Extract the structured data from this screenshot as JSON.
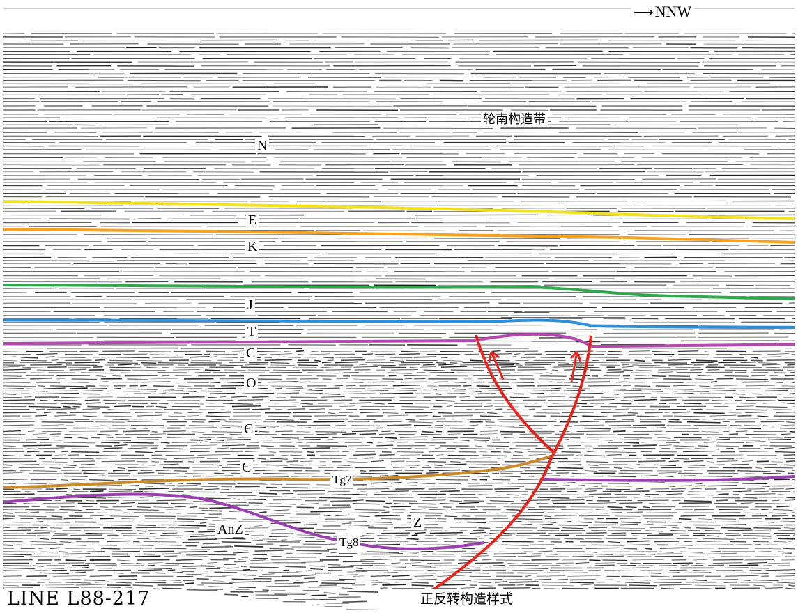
{
  "direction": {
    "label": "NNW",
    "icon": "arrow-right-icon"
  },
  "structural_belt": "轮南构造带",
  "strata": {
    "N": "N",
    "E": "E",
    "K": "K",
    "J": "J",
    "T": "T",
    "C": "C",
    "O": "O",
    "Cam1": "Є",
    "Cam2": "Є",
    "Z": "Z",
    "AnZ": "AnZ"
  },
  "horizons": {
    "Tg7": "Tg7",
    "Tg8": "Tg8"
  },
  "line_id": "LINE L88-217",
  "caption": "正反转构造样式",
  "colors": {
    "yellow": "#f2e21c",
    "orange": "#f6a21f",
    "green": "#2fa84a",
    "blue": "#2f8fd8",
    "magenta": "#b548b0",
    "tg7": "#c98a2a",
    "purple": "#9a3fb0",
    "fault": "#e8231c",
    "reflector": "#1a1a1a"
  }
}
